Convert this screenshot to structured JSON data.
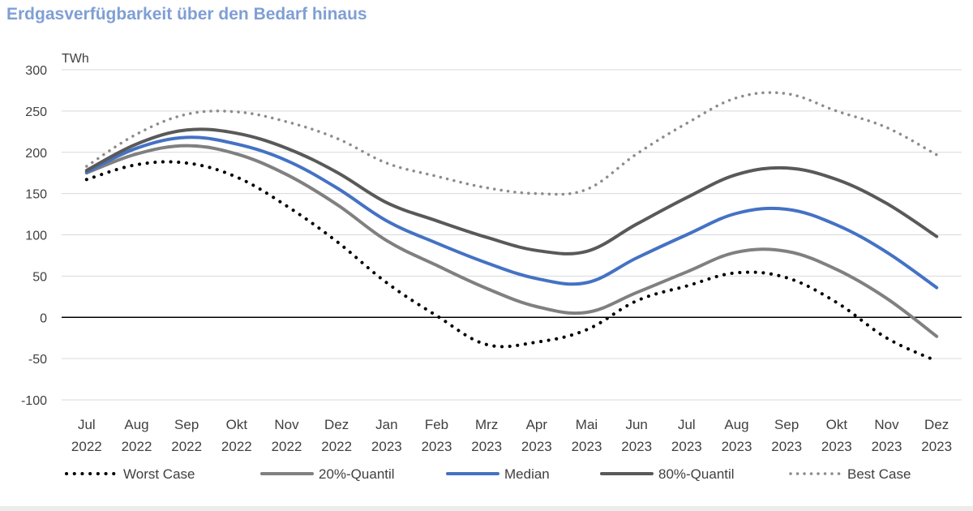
{
  "chart_data": {
    "type": "line",
    "title": "Erdgasverfügbarkeit über den Bedarf hinaus",
    "ylabel": "TWh",
    "xlabel": "",
    "ylim": [
      -100,
      300
    ],
    "yticks": [
      300,
      250,
      200,
      150,
      100,
      50,
      0,
      -50,
      -100
    ],
    "categories": [
      {
        "month": "Jul",
        "year": "2022"
      },
      {
        "month": "Aug",
        "year": "2022"
      },
      {
        "month": "Sep",
        "year": "2022"
      },
      {
        "month": "Okt",
        "year": "2022"
      },
      {
        "month": "Nov",
        "year": "2022"
      },
      {
        "month": "Dez",
        "year": "2022"
      },
      {
        "month": "Jan",
        "year": "2023"
      },
      {
        "month": "Feb",
        "year": "2023"
      },
      {
        "month": "Mrz",
        "year": "2023"
      },
      {
        "month": "Apr",
        "year": "2023"
      },
      {
        "month": "Mai",
        "year": "2023"
      },
      {
        "month": "Jun",
        "year": "2023"
      },
      {
        "month": "Jul",
        "year": "2023"
      },
      {
        "month": "Aug",
        "year": "2023"
      },
      {
        "month": "Sep",
        "year": "2023"
      },
      {
        "month": "Okt",
        "year": "2023"
      },
      {
        "month": "Nov",
        "year": "2023"
      },
      {
        "month": "Dez",
        "year": "2023"
      }
    ],
    "series": [
      {
        "name": "Worst Case",
        "color": "#000000",
        "style": "dotted",
        "values": [
          167,
          185,
          187,
          170,
          135,
          92,
          42,
          2,
          -33,
          -30,
          -15,
          20,
          38,
          54,
          48,
          18,
          -25,
          -53
        ]
      },
      {
        "name": "20%-Quantil",
        "color": "#808080",
        "style": "solid",
        "values": [
          175,
          198,
          208,
          198,
          173,
          137,
          93,
          63,
          35,
          13,
          6,
          30,
          55,
          79,
          80,
          58,
          23,
          -23
        ]
      },
      {
        "name": "Median",
        "color": "#4472c4",
        "style": "solid",
        "values": [
          176,
          205,
          218,
          210,
          190,
          157,
          117,
          90,
          66,
          47,
          42,
          72,
          100,
          126,
          131,
          112,
          79,
          36
        ]
      },
      {
        "name": "80%-Quantil",
        "color": "#595959",
        "style": "solid",
        "values": [
          178,
          210,
          227,
          223,
          205,
          176,
          139,
          117,
          97,
          81,
          80,
          113,
          145,
          173,
          181,
          167,
          138,
          98
        ]
      },
      {
        "name": "Best Case",
        "color": "#8c8c8c",
        "style": "dotted",
        "values": [
          183,
          222,
          246,
          249,
          237,
          217,
          187,
          171,
          157,
          150,
          155,
          198,
          235,
          266,
          271,
          250,
          230,
          197
        ]
      }
    ],
    "legend_position": "bottom"
  }
}
